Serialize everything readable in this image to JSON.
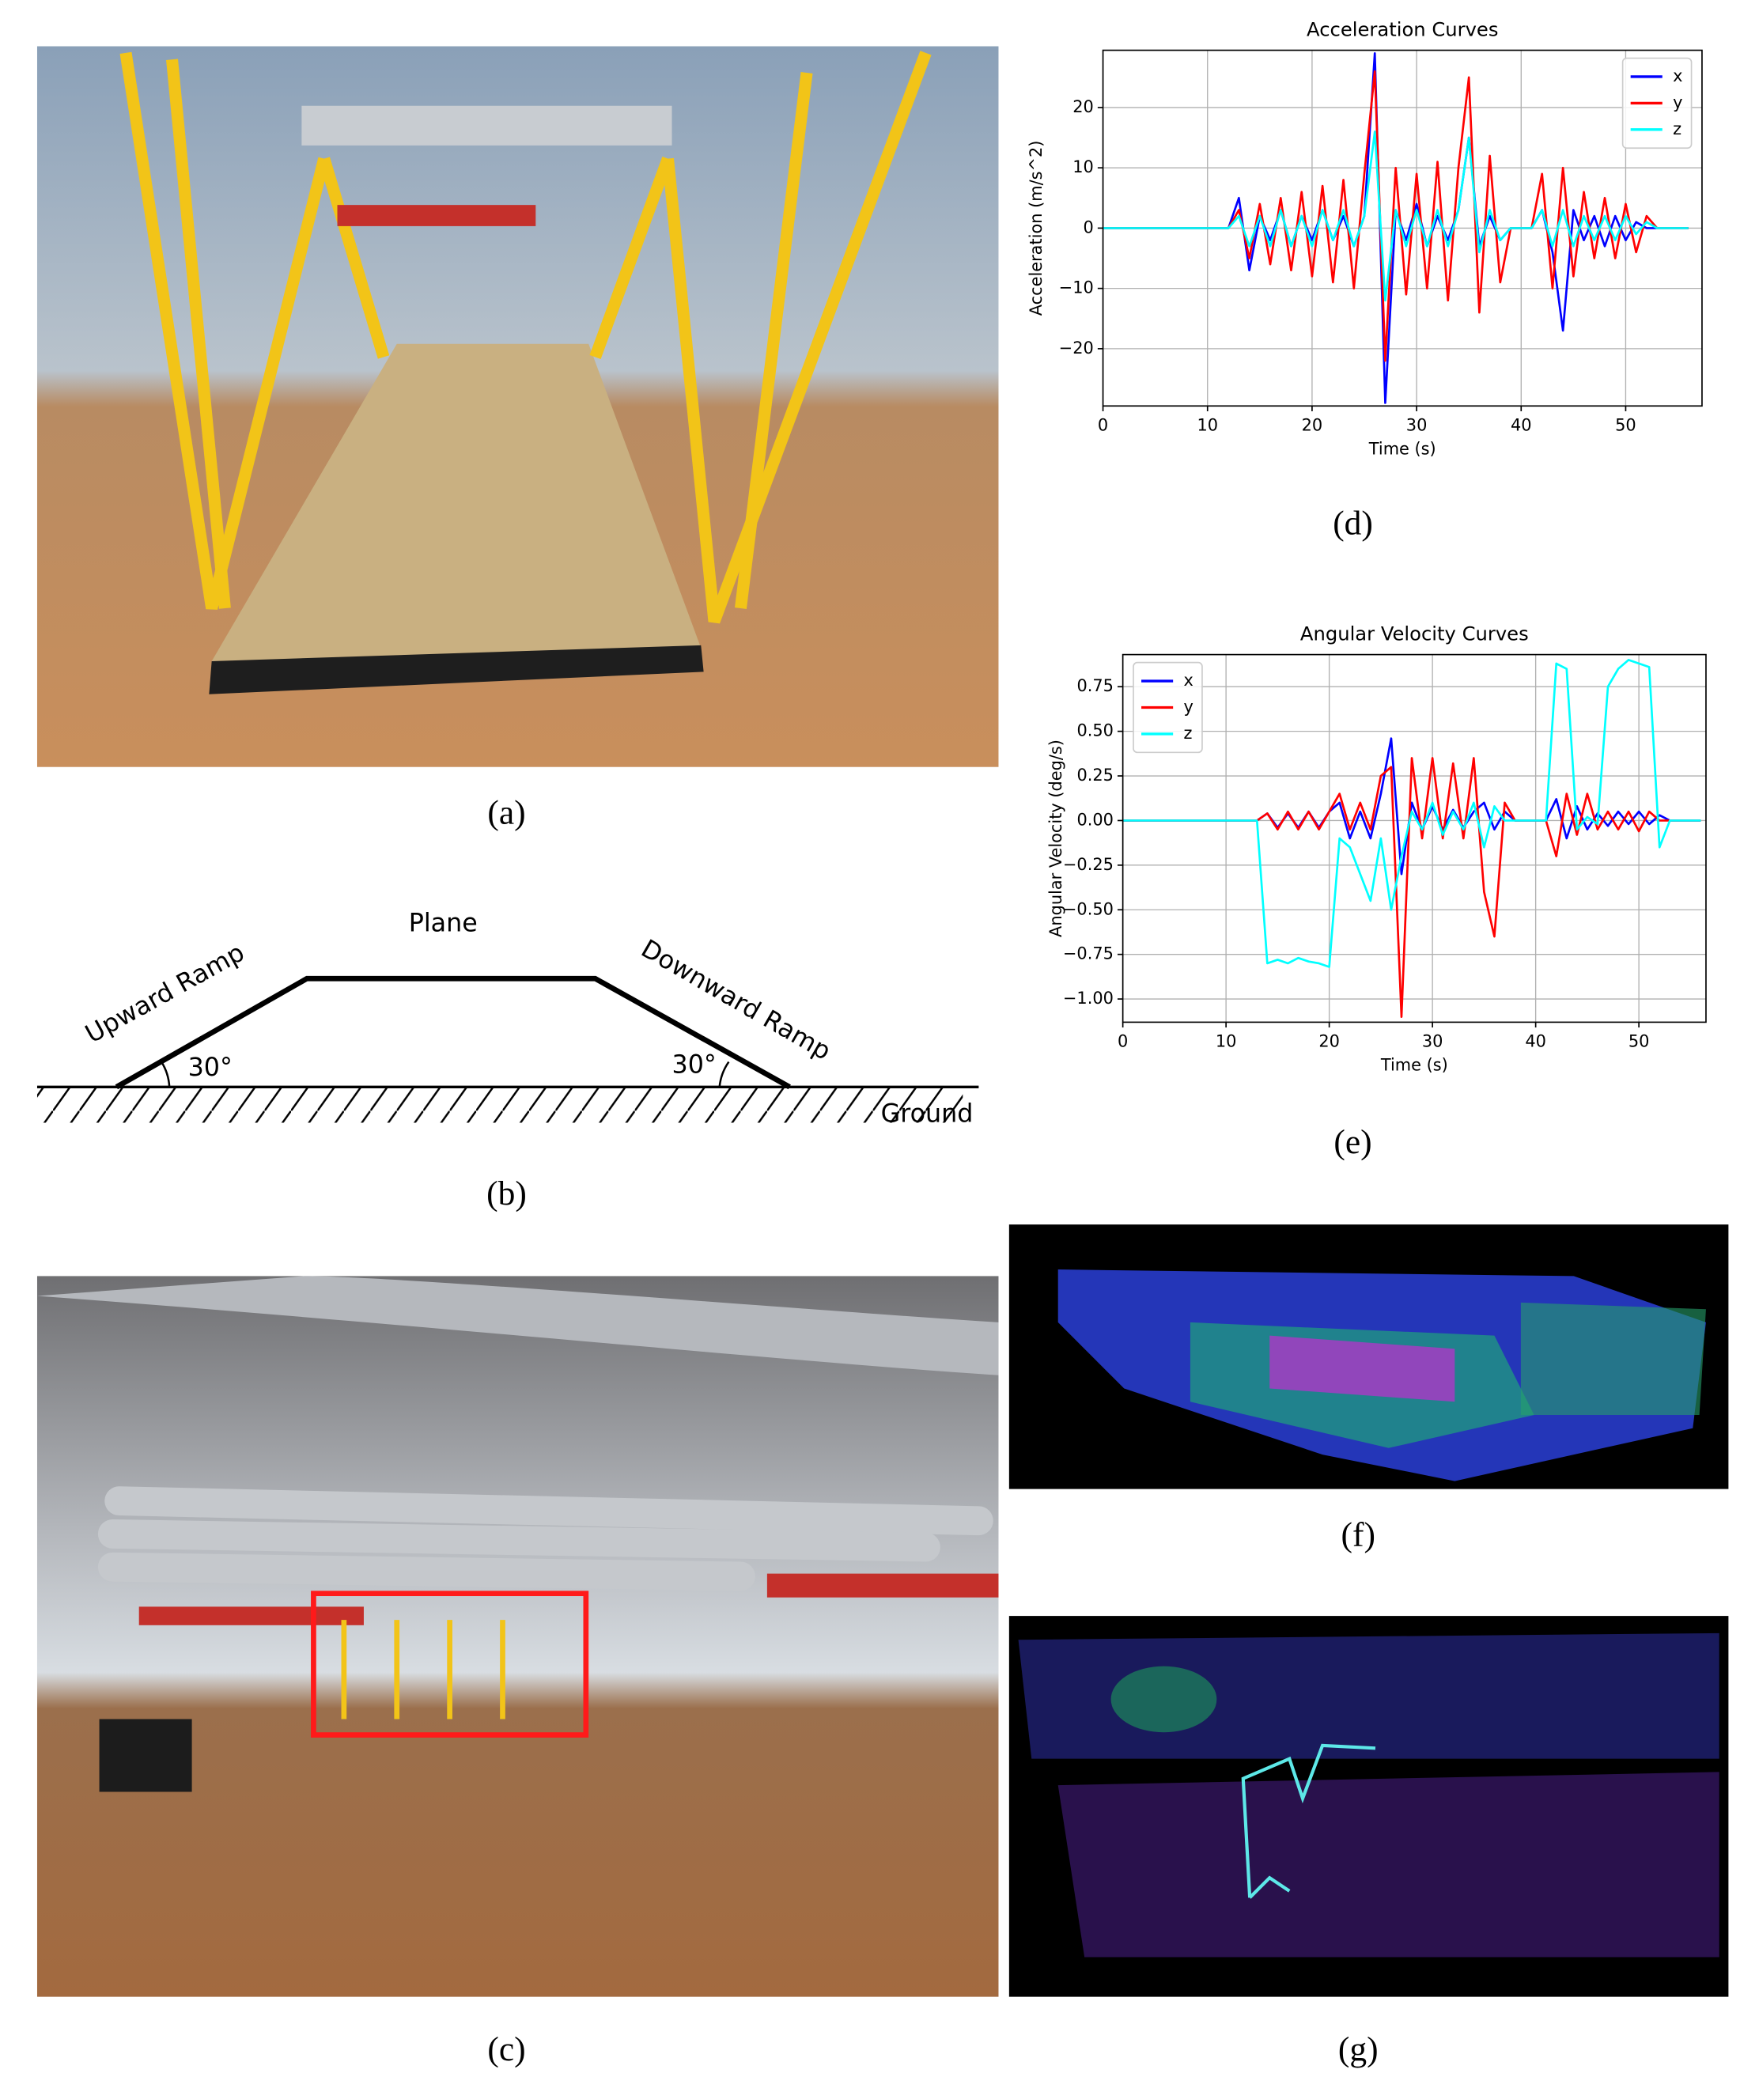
{
  "panels": {
    "a": "(a)",
    "b": "(b)",
    "c": "(c)",
    "d": "(d)",
    "e": "(e)",
    "f": "(f)",
    "g": "(g)"
  },
  "diagram": {
    "plane": "Plane",
    "upward_ramp": "Upward Ramp",
    "downward_ramp": "Downward Ramp",
    "angle_left": "30°",
    "angle_right": "30°",
    "ground": "Ground"
  },
  "chart_data": [
    {
      "type": "line",
      "title": "Acceleration Curves",
      "x_label": "Time (s)",
      "y_label": "Acceleration (m/s^2)",
      "xlim": [
        0,
        57.3
      ],
      "ylim": [
        -29.5,
        29.5
      ],
      "xticks": [
        0,
        10,
        20,
        30,
        40,
        50
      ],
      "yticks": [
        {
          "value": -20,
          "label": "−20"
        },
        {
          "value": -10,
          "label": "−10"
        },
        0,
        10,
        20
      ],
      "grid": true,
      "legend": "upper right",
      "x": [
        0,
        1,
        2,
        3,
        4,
        5,
        6,
        7,
        8,
        9,
        10,
        11,
        12,
        13,
        14,
        15,
        16,
        17,
        18,
        19,
        20,
        21,
        22,
        23,
        24,
        25,
        26,
        27,
        28,
        29,
        30,
        31,
        32,
        33,
        34,
        35,
        36,
        37,
        38,
        39,
        40,
        41,
        42,
        43,
        44,
        45,
        46,
        47,
        48,
        49,
        50,
        51,
        52,
        53,
        54,
        55,
        56
      ],
      "series": [
        {
          "name": "x",
          "color": "#0000ff",
          "values": [
            0,
            0,
            0,
            0,
            0,
            0,
            0,
            0,
            0,
            0,
            0,
            0,
            0,
            5,
            -7,
            2,
            -2,
            3,
            -3,
            2,
            -2,
            3,
            -2,
            2,
            -3,
            2,
            29,
            -29,
            3,
            -2,
            4,
            -3,
            2,
            -2,
            3,
            15,
            -3,
            2,
            -2,
            0,
            0,
            0,
            3,
            -4,
            -17,
            3,
            -2,
            2,
            -3,
            2,
            -2,
            1,
            0,
            0,
            0,
            0,
            0
          ]
        },
        {
          "name": "y",
          "color": "#ff0000",
          "values": [
            0,
            0,
            0,
            0,
            0,
            0,
            0,
            0,
            0,
            0,
            0,
            0,
            0,
            3,
            -5,
            4,
            -6,
            5,
            -7,
            6,
            -8,
            7,
            -9,
            8,
            -10,
            9,
            26,
            -22,
            10,
            -11,
            9,
            -10,
            11,
            -12,
            10,
            25,
            -14,
            12,
            -9,
            0,
            0,
            0,
            9,
            -10,
            10,
            -8,
            6,
            -5,
            5,
            -5,
            4,
            -4,
            2,
            0,
            0,
            0,
            0
          ]
        },
        {
          "name": "z",
          "color": "#00ffff",
          "values": [
            0,
            0,
            0,
            0,
            0,
            0,
            0,
            0,
            0,
            0,
            0,
            0,
            0,
            2,
            -3,
            2,
            -3,
            3,
            -3,
            2,
            -3,
            3,
            -2,
            3,
            -3,
            2,
            16,
            -12,
            3,
            -3,
            3,
            -3,
            3,
            -3,
            3,
            15,
            -4,
            3,
            -2,
            0,
            0,
            0,
            3,
            -3,
            3,
            -3,
            2,
            -2,
            2,
            -2,
            2,
            -1,
            1,
            0,
            0,
            0,
            0
          ]
        }
      ]
    },
    {
      "type": "line",
      "title": "Angular Velocity Curves",
      "x_label": "Time (s)",
      "y_label": "Angular Velocity (deg/s)",
      "xlim": [
        0,
        56.5
      ],
      "ylim": [
        -1.13,
        0.93
      ],
      "xticks": [
        0,
        10,
        20,
        30,
        40,
        50
      ],
      "yticks": [
        {
          "value": -1,
          "label": "−1.00"
        },
        {
          "value": -0.75,
          "label": "−0.75"
        },
        {
          "value": -0.5,
          "label": "−0.50"
        },
        {
          "value": -0.25,
          "label": "−0.25"
        },
        {
          "value": 0,
          "label": "0.00"
        },
        {
          "value": 0.25,
          "label": "0.25"
        },
        {
          "value": 0.5,
          "label": "0.50"
        },
        {
          "value": 0.75,
          "label": "0.75"
        }
      ],
      "grid": true,
      "legend": "upper left",
      "x": [
        0,
        1,
        2,
        3,
        4,
        5,
        6,
        7,
        8,
        9,
        10,
        11,
        12,
        13,
        14,
        15,
        16,
        17,
        18,
        19,
        20,
        21,
        22,
        23,
        24,
        25,
        26,
        27,
        28,
        29,
        30,
        31,
        32,
        33,
        34,
        35,
        36,
        37,
        38,
        39,
        40,
        41,
        42,
        43,
        44,
        45,
        46,
        47,
        48,
        49,
        50,
        51,
        52,
        53,
        54,
        55,
        56
      ],
      "series": [
        {
          "name": "x",
          "color": "#0000ff",
          "values": [
            0,
            0,
            0,
            0,
            0,
            0,
            0,
            0,
            0,
            0,
            0,
            0,
            0,
            0,
            0.04,
            -0.04,
            0.04,
            -0.04,
            0.05,
            -0.04,
            0.05,
            0.1,
            -0.1,
            0.05,
            -0.1,
            0.15,
            0.46,
            -0.3,
            0.1,
            -0.05,
            0.08,
            -0.05,
            0.06,
            -0.04,
            0.05,
            0.1,
            -0.05,
            0.05,
            0,
            0,
            0,
            0,
            0.12,
            -0.1,
            0.08,
            -0.05,
            0.04,
            -0.03,
            0.05,
            -0.02,
            0.05,
            -0.02,
            0.03,
            0,
            0,
            0,
            0
          ]
        },
        {
          "name": "y",
          "color": "#ff0000",
          "values": [
            0,
            0,
            0,
            0,
            0,
            0,
            0,
            0,
            0,
            0,
            0,
            0,
            0,
            0,
            0.04,
            -0.05,
            0.05,
            -0.05,
            0.05,
            -0.05,
            0.05,
            0.15,
            -0.05,
            0.1,
            -0.05,
            0.25,
            0.3,
            -1.1,
            0.35,
            -0.1,
            0.35,
            -0.1,
            0.32,
            -0.1,
            0.35,
            -0.4,
            -0.65,
            0.1,
            0,
            0,
            0,
            0,
            -0.2,
            0.15,
            -0.08,
            0.15,
            -0.05,
            0.05,
            -0.05,
            0.05,
            -0.06,
            0.05,
            0,
            0,
            0,
            0,
            0
          ]
        },
        {
          "name": "z",
          "color": "#00ffff",
          "values": [
            0,
            0,
            0,
            0,
            0,
            0,
            0,
            0,
            0,
            0,
            0,
            0,
            0,
            0,
            -0.8,
            -0.78,
            -0.8,
            -0.77,
            -0.79,
            -0.8,
            -0.82,
            -0.1,
            -0.15,
            -0.3,
            -0.45,
            -0.1,
            -0.5,
            -0.2,
            0.05,
            -0.05,
            0.1,
            -0.08,
            0.05,
            -0.05,
            0.1,
            -0.15,
            0.08,
            0,
            0,
            0,
            0,
            0,
            0.88,
            0.85,
            -0.05,
            0.02,
            -0.02,
            0.75,
            0.85,
            0.9,
            0.88,
            0.86,
            -0.15,
            0,
            0,
            0,
            0
          ]
        }
      ]
    }
  ]
}
